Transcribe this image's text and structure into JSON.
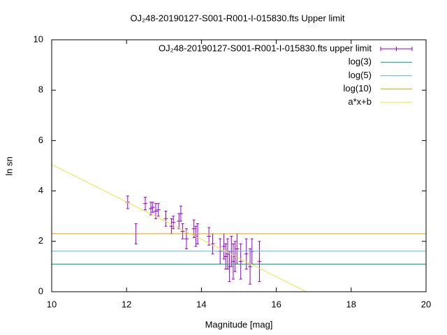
{
  "chart_data": {
    "type": "scatter",
    "title": "OJ₂48-20190127-S001-R001-I-015830.fts Upper limit",
    "x_label": "Magnitude [mag]",
    "y_label": "ln sn",
    "xlim": [
      10,
      20
    ],
    "xticks": [
      10,
      12,
      14,
      16,
      18,
      20
    ],
    "ylim": [
      0,
      10
    ],
    "yticks": [
      0,
      2,
      4,
      6,
      8,
      10
    ],
    "legend": "top-right",
    "series": [
      {
        "name": "OJ₂48-20190127-S001-R001-I-015830.fts upper limit",
        "kind": "errorbar",
        "color": "#9400d3",
        "x": [
          12.03,
          12.25,
          12.5,
          12.65,
          12.7,
          12.78,
          12.85,
          13.05,
          13.2,
          13.25,
          13.4,
          13.45,
          13.5,
          13.6,
          13.8,
          13.85,
          13.9,
          14.2,
          14.3,
          14.5,
          14.6,
          14.65,
          14.7,
          14.75,
          14.8,
          14.85,
          14.9,
          14.95,
          15.05,
          15.2,
          15.3,
          15.35,
          15.55
        ],
        "values": [
          3.55,
          2.3,
          3.5,
          3.3,
          3.35,
          3.2,
          3.25,
          2.9,
          2.6,
          2.75,
          2.8,
          3.1,
          2.4,
          2.1,
          2.5,
          2.2,
          2.3,
          2.2,
          1.9,
          1.6,
          1.8,
          1.4,
          1.5,
          1.0,
          1.6,
          1.2,
          1.4,
          1.7,
          1.2,
          1.5,
          1.0,
          1.6,
          1.2
        ],
        "errors": [
          0.25,
          0.4,
          0.25,
          0.25,
          0.2,
          0.3,
          0.25,
          0.3,
          0.3,
          0.25,
          0.3,
          0.3,
          0.3,
          0.4,
          0.35,
          0.4,
          0.4,
          0.35,
          0.4,
          0.5,
          0.5,
          0.5,
          0.6,
          0.6,
          0.6,
          0.7,
          0.6,
          0.6,
          0.7,
          0.6,
          0.7,
          0.5,
          0.8
        ]
      },
      {
        "name": "log(3)",
        "kind": "line",
        "color": "#009e73",
        "x": [
          10,
          20
        ],
        "values": [
          1.0986,
          1.0986
        ]
      },
      {
        "name": "log(5)",
        "kind": "line",
        "color": "#56b4e9",
        "x": [
          10,
          20
        ],
        "values": [
          1.6094,
          1.6094
        ]
      },
      {
        "name": "log(10)",
        "kind": "line",
        "color": "#e69f00",
        "x": [
          10,
          20
        ],
        "values": [
          2.3026,
          2.3026
        ]
      },
      {
        "name": "a*x+b",
        "kind": "line",
        "color": "#f0e442",
        "x": [
          10,
          16.8
        ],
        "values": [
          5.05,
          0
        ]
      }
    ]
  }
}
